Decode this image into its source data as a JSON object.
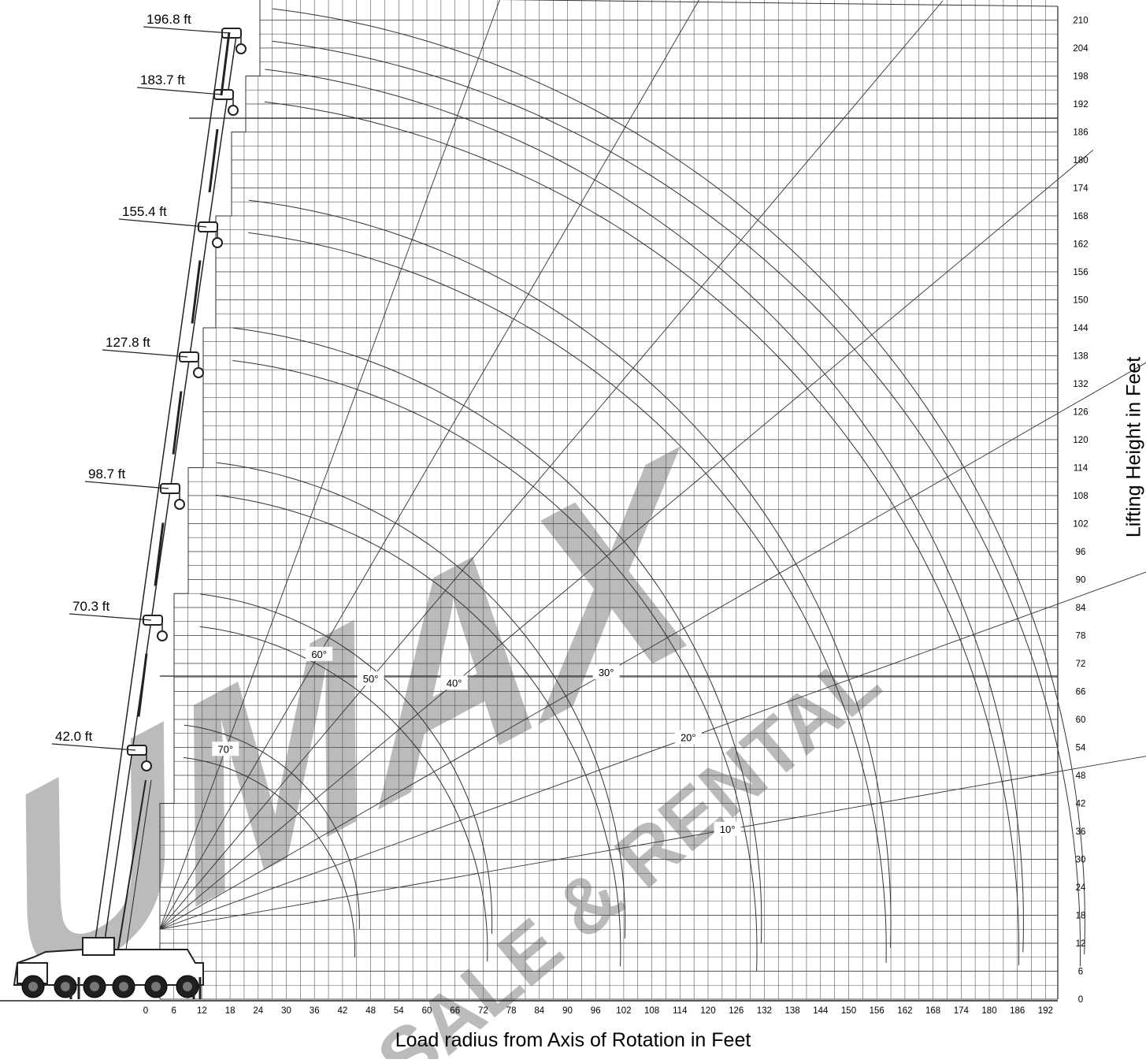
{
  "chart_data": {
    "type": "range_diagram",
    "xlabel": "Load radius from Axis of Rotation in Feet",
    "ylabel": "Lifting Height in Feet",
    "x_ticks": [
      0,
      6,
      12,
      18,
      24,
      30,
      36,
      42,
      48,
      54,
      60,
      66,
      72,
      78,
      84,
      90,
      96,
      102,
      108,
      114,
      120,
      126,
      132,
      138,
      144,
      150,
      156,
      162,
      168,
      174,
      180,
      186,
      192
    ],
    "y_ticks": [
      0,
      6,
      12,
      18,
      24,
      30,
      36,
      42,
      48,
      54,
      60,
      66,
      72,
      78,
      84,
      90,
      96,
      102,
      108,
      114,
      120,
      126,
      132,
      138,
      144,
      150,
      156,
      162,
      168,
      174,
      180,
      186,
      192,
      198,
      204,
      210
    ],
    "xlim": [
      0,
      192
    ],
    "ylim": [
      0,
      210
    ],
    "grid": true,
    "boom_lengths": [
      {
        "label": "42.0 ft",
        "length": 42.0
      },
      {
        "label": "70.3 ft",
        "length": 70.3
      },
      {
        "label": "98.7 ft",
        "length": 98.7
      },
      {
        "label": "127.8 ft",
        "length": 127.8
      },
      {
        "label": "155.4 ft",
        "length": 155.4
      },
      {
        "label": "183.7 ft",
        "length": 183.7
      },
      {
        "label": "196.8 ft",
        "length": 196.8
      }
    ],
    "boom_angles": [
      {
        "label": "70°",
        "angle": 70
      },
      {
        "label": "60°",
        "angle": 60
      },
      {
        "label": "50°",
        "angle": 50
      },
      {
        "label": "40°",
        "angle": 40
      },
      {
        "label": "30°",
        "angle": 30
      },
      {
        "label": "20°",
        "angle": 20
      },
      {
        "label": "10°",
        "angle": 10
      }
    ],
    "watermark": [
      "UMAX",
      "SALE & RENTAL"
    ]
  },
  "colors": {
    "grid": "#555555",
    "curve": "#333333",
    "watermark": "#b4b4b4",
    "crane": "#222222"
  }
}
